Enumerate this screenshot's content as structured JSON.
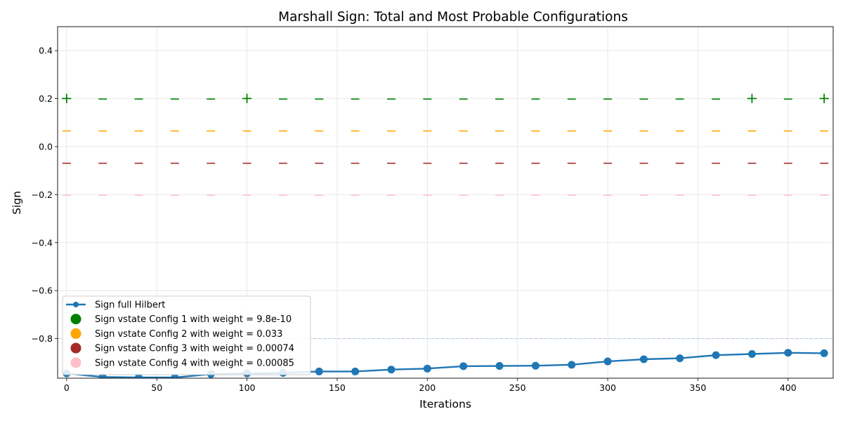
{
  "chart_data": {
    "type": "line",
    "title": "Marshall Sign: Total and Most Probable Configurations",
    "xlabel": "Iterations",
    "ylabel": "Sign",
    "xlim": [
      -5,
      425
    ],
    "ylim": [
      -0.965,
      0.5
    ],
    "xticks": [
      "0",
      "50",
      "100",
      "150",
      "200",
      "250",
      "300",
      "350",
      "400"
    ],
    "xtick_values": [
      0,
      50,
      100,
      150,
      200,
      250,
      300,
      350,
      400
    ],
    "yticks": [
      "0.4",
      "0.2",
      "0.0",
      "−0.2",
      "−0.4",
      "−0.6",
      "−0.8"
    ],
    "ytick_values": [
      0.4,
      0.2,
      0.0,
      -0.2,
      -0.4,
      -0.6,
      -0.8
    ],
    "grid": true,
    "legend_position": "lower left",
    "reference_line": {
      "y": -0.8,
      "style": "dashed",
      "color": "#aec7e8"
    },
    "x": [
      0,
      20,
      40,
      60,
      80,
      100,
      120,
      140,
      160,
      180,
      200,
      220,
      240,
      260,
      280,
      300,
      320,
      340,
      360,
      380,
      400,
      420
    ],
    "series": [
      {
        "name": "Sign full Hilbert",
        "kind": "line",
        "color": "#1f77b4",
        "values": [
          -0.945,
          -0.96,
          -0.962,
          -0.962,
          -0.948,
          -0.945,
          -0.943,
          -0.937,
          -0.937,
          -0.929,
          -0.925,
          -0.915,
          -0.914,
          -0.913,
          -0.909,
          -0.895,
          -0.886,
          -0.882,
          -0.869,
          -0.864,
          -0.859,
          -0.861
        ]
      },
      {
        "name": "Sign vstate Config 1 with weight = 9.8e-10",
        "kind": "sign",
        "color": "#008000",
        "y": 0.2,
        "signs": [
          "+",
          "−",
          "−",
          "−",
          "−",
          "+",
          "−",
          "−",
          "−",
          "−",
          "−",
          "−",
          "−",
          "−",
          "−",
          "−",
          "−",
          "−",
          "−",
          "+",
          "−",
          "+"
        ]
      },
      {
        "name": "Sign vstate Config 2 with weight = 0.033",
        "kind": "sign",
        "color": "#ffa500",
        "y": 0.0667,
        "signs": [
          "−",
          "−",
          "−",
          "−",
          "−",
          "−",
          "−",
          "−",
          "−",
          "−",
          "−",
          "−",
          "−",
          "−",
          "−",
          "−",
          "−",
          "−",
          "−",
          "−",
          "−",
          "−"
        ]
      },
      {
        "name": "Sign vstate Config 3 with weight = 0.00074",
        "kind": "sign",
        "color": "#a52a2a",
        "y": -0.0667,
        "signs": [
          "−",
          "−",
          "−",
          "−",
          "−",
          "−",
          "−",
          "−",
          "−",
          "−",
          "−",
          "−",
          "−",
          "−",
          "−",
          "−",
          "−",
          "−",
          "−",
          "−",
          "−",
          "−"
        ]
      },
      {
        "name": "Sign vstate Config 4 with weight = 0.00085",
        "kind": "sign",
        "color": "#ffc0cb",
        "y": -0.2,
        "signs": [
          "−",
          "−",
          "−",
          "−",
          "−",
          "−",
          "−",
          "−",
          "−",
          "−",
          "−",
          "−",
          "−",
          "−",
          "−",
          "−",
          "−",
          "−",
          "−",
          "−",
          "−",
          "−"
        ]
      }
    ]
  }
}
